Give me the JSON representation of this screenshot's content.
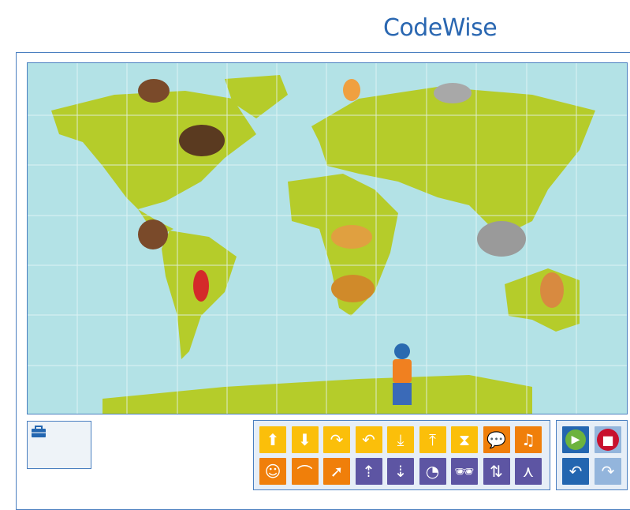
{
  "app": {
    "title": "CodeWise"
  },
  "map": {
    "land_color": "#b5cc2a",
    "water_color": "#b3e2e6",
    "animals": [
      "bear",
      "fox",
      "wolf",
      "eagle",
      "monkey",
      "parrot",
      "jaguar",
      "elephant",
      "lion",
      "kangaroo"
    ],
    "character": "boy-explorer"
  },
  "inventory": {
    "icon": "briefcase-icon"
  },
  "commands": {
    "row1": [
      {
        "name": "move-up",
        "glyph": "⬆",
        "color": "y"
      },
      {
        "name": "move-down",
        "glyph": "⬇",
        "color": "y"
      },
      {
        "name": "turn-right",
        "glyph": "↷",
        "color": "y"
      },
      {
        "name": "turn-left",
        "glyph": "↶",
        "color": "y"
      },
      {
        "name": "sit-down",
        "glyph": "⤓",
        "color": "y"
      },
      {
        "name": "stand-up",
        "glyph": "⤒",
        "color": "y"
      },
      {
        "name": "wait",
        "glyph": "⧗",
        "color": "y"
      },
      {
        "name": "say",
        "glyph": "💬",
        "color": "o"
      },
      {
        "name": "sing",
        "glyph": "♫",
        "color": "o"
      }
    ],
    "row2": [
      {
        "name": "dance",
        "glyph": "☺",
        "color": "o"
      },
      {
        "name": "bridge",
        "glyph": "⌒",
        "color": "o"
      },
      {
        "name": "jump",
        "glyph": "➚",
        "color": "o"
      },
      {
        "name": "pick-up",
        "glyph": "⇡",
        "color": "p"
      },
      {
        "name": "put-down",
        "glyph": "⇣",
        "color": "p"
      },
      {
        "name": "speed",
        "glyph": "◔",
        "color": "p"
      },
      {
        "name": "disguise",
        "glyph": "🕶",
        "color": "p"
      },
      {
        "name": "grow-shrink",
        "glyph": "⇅",
        "color": "p"
      },
      {
        "name": "branch",
        "glyph": "⋏",
        "color": "p"
      }
    ]
  },
  "controls": [
    {
      "name": "play",
      "glyph": "▶",
      "color": "b"
    },
    {
      "name": "stop",
      "glyph": "■",
      "color": "lb"
    },
    {
      "name": "undo",
      "glyph": "↶",
      "color": "b"
    },
    {
      "name": "redo",
      "glyph": "↷",
      "color": "lb"
    }
  ]
}
